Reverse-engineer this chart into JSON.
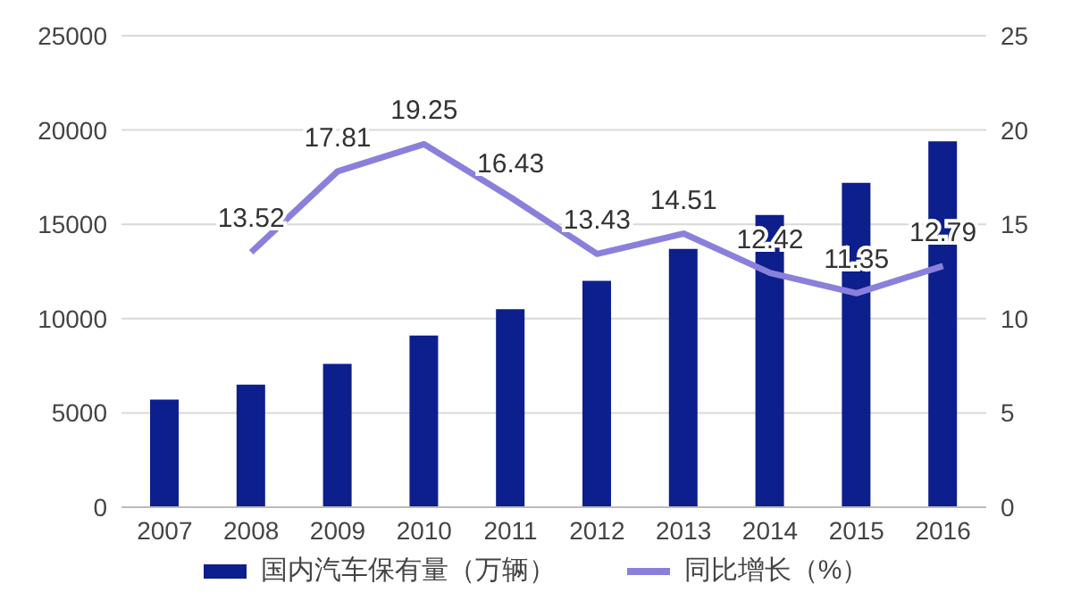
{
  "chart_data": {
    "type": "bar",
    "categories": [
      "2007",
      "2008",
      "2009",
      "2010",
      "2011",
      "2012",
      "2013",
      "2014",
      "2015",
      "2016"
    ],
    "series": [
      {
        "name": "国内汽车保有量（万辆）",
        "color": "#0c1f8c",
        "values": [
          5700,
          6500,
          7600,
          9100,
          10500,
          12000,
          13700,
          15500,
          17200,
          19400
        ]
      },
      {
        "name": "同比增长（%）",
        "type": "line",
        "axis": "y2",
        "color": "#8a80dc",
        "values": [
          null,
          13.52,
          17.81,
          19.25,
          16.43,
          13.43,
          14.51,
          12.42,
          11.35,
          12.79
        ],
        "data_labels": true,
        "marker": "none"
      }
    ],
    "ylim": [
      0,
      25000
    ],
    "yticks": [
      0,
      5000,
      10000,
      15000,
      20000,
      25000
    ],
    "y2lim": [
      0,
      25
    ],
    "y2ticks": [
      0,
      5,
      10,
      15,
      20,
      25
    ],
    "grid": "y",
    "legend": "bottom"
  }
}
